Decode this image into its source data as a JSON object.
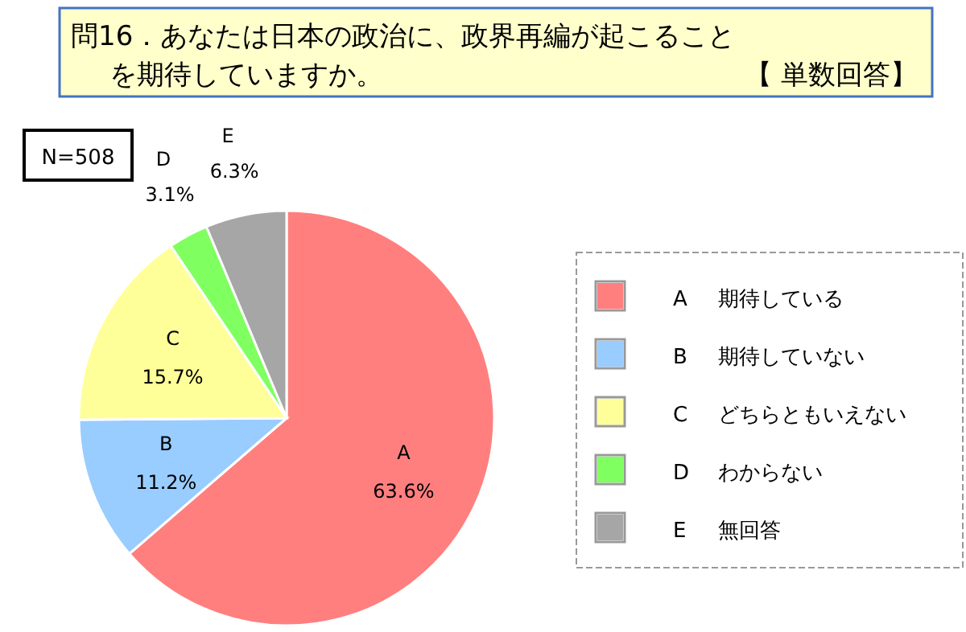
{
  "chart_data": {
    "type": "pie",
    "title": "問16．あなたは日本の政治に、政界再編が起こることを期待していますか。",
    "subtitle": "【 単数回答】",
    "categories": [
      "A",
      "B",
      "C",
      "D",
      "E"
    ],
    "values": [
      63.6,
      11.2,
      15.7,
      3.1,
      6.3
    ],
    "value_labels": [
      "63.6%",
      "11.2%",
      "15.7%",
      "3.1%",
      "6.3%"
    ],
    "colors": [
      "#ff7f7f",
      "#99ccff",
      "#ffff99",
      "#80ff60",
      "#a6a6a6"
    ],
    "legend": "right",
    "annotations": [
      "N=508",
      "期待している",
      "期待していない",
      "どちらともいえない",
      "わからない",
      "無回答"
    ]
  }
}
